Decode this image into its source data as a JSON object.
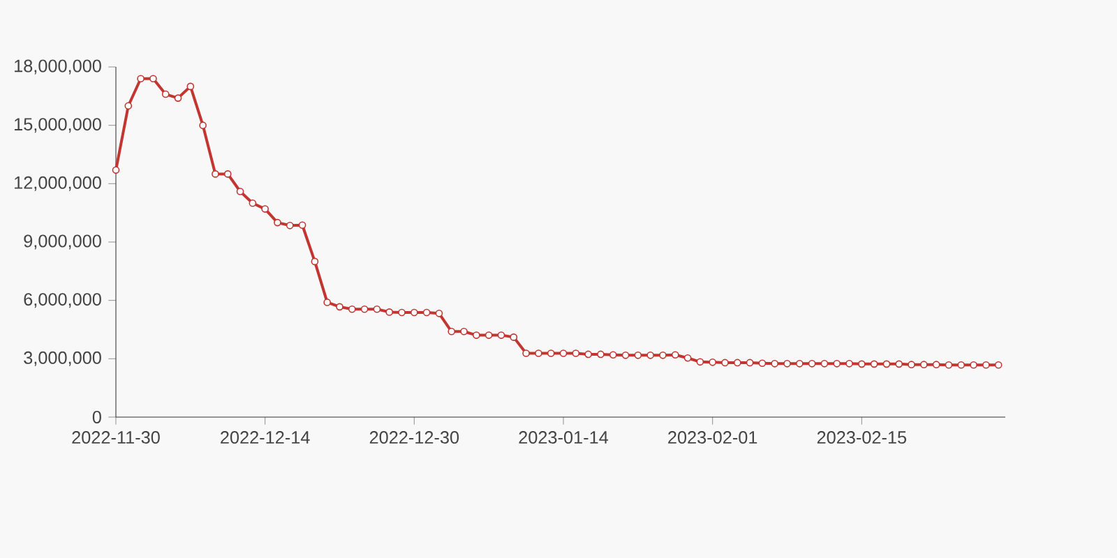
{
  "chart_data": {
    "type": "line",
    "categories": [
      "2022-11-30",
      null,
      null,
      null,
      null,
      null,
      null,
      null,
      null,
      null,
      null,
      null,
      "2022-12-14",
      null,
      null,
      null,
      null,
      null,
      null,
      null,
      null,
      null,
      null,
      null,
      "2022-12-30",
      null,
      null,
      null,
      null,
      null,
      null,
      null,
      null,
      null,
      null,
      null,
      "2023-01-14",
      null,
      null,
      null,
      null,
      null,
      null,
      null,
      null,
      null,
      null,
      null,
      "2023-02-01",
      null,
      null,
      null,
      null,
      null,
      null,
      null,
      null,
      null,
      null,
      null,
      "2023-02-15",
      null,
      null,
      null,
      null,
      null,
      null,
      null,
      null,
      null,
      null,
      null
    ],
    "series": [
      {
        "color": "#c23531",
        "values": [
          12700000,
          16000000,
          17400000,
          17400000,
          16600000,
          16400000,
          17000000,
          15000000,
          12500000,
          12500000,
          11600000,
          11000000,
          10700000,
          10000000,
          9850000,
          9870000,
          8000000,
          5900000,
          5670000,
          5550000,
          5550000,
          5550000,
          5400000,
          5380000,
          5380000,
          5380000,
          5330000,
          4400000,
          4400000,
          4210000,
          4210000,
          4210000,
          4110000,
          3280000,
          3280000,
          3280000,
          3280000,
          3280000,
          3230000,
          3230000,
          3200000,
          3180000,
          3180000,
          3180000,
          3180000,
          3200000,
          3040000,
          2840000,
          2820000,
          2800000,
          2800000,
          2800000,
          2770000,
          2750000,
          2750000,
          2750000,
          2750000,
          2750000,
          2750000,
          2750000,
          2730000,
          2730000,
          2730000,
          2730000,
          2700000,
          2700000,
          2700000,
          2680000,
          2680000,
          2680000,
          2680000,
          2680000
        ]
      }
    ],
    "ylim": [
      0,
      18000000
    ],
    "yticks": [
      {
        "value": 0,
        "label": "0"
      },
      {
        "value": 3000000,
        "label": "3,000,000"
      },
      {
        "value": 6000000,
        "label": "6,000,000"
      },
      {
        "value": 9000000,
        "label": "9,000,000"
      },
      {
        "value": 12000000,
        "label": "12,000,000"
      },
      {
        "value": 15000000,
        "label": "15,000,000"
      },
      {
        "value": 18000000,
        "label": "18,000,000"
      }
    ],
    "grid": false,
    "legend": false,
    "marker": "circle",
    "line_style": "solid"
  }
}
